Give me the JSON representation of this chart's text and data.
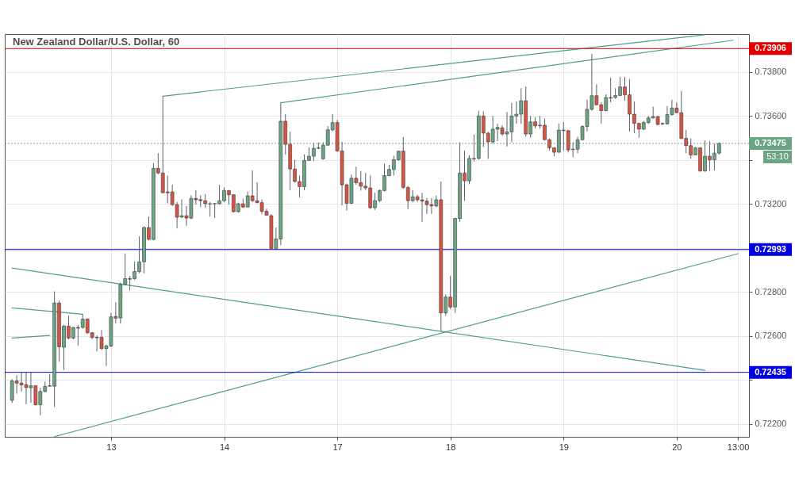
{
  "chart_data": {
    "type": "candlestick",
    "title": "New Zealand Dollar/U.S. Dollar, 60",
    "categories": [
      null,
      null,
      null,
      null,
      null,
      null,
      null,
      null,
      null,
      null,
      null,
      null,
      null,
      null,
      null,
      null,
      null,
      null,
      null,
      null,
      null,
      "13",
      null,
      null,
      null,
      null,
      null,
      null,
      null,
      null,
      null,
      null,
      null,
      null,
      null,
      null,
      null,
      null,
      null,
      null,
      null,
      null,
      null,
      null,
      null,
      "14",
      null,
      null,
      null,
      null,
      null,
      null,
      null,
      null,
      null,
      null,
      null,
      null,
      null,
      null,
      null,
      null,
      null,
      null,
      null,
      null,
      null,
      null,
      null,
      "17",
      null,
      null,
      null,
      null,
      null,
      null,
      null,
      null,
      null,
      null,
      null,
      null,
      null,
      null,
      null,
      null,
      null,
      null,
      null,
      null,
      null,
      null,
      null,
      "18",
      null,
      null,
      null,
      null,
      null,
      null,
      null,
      null,
      null,
      null,
      null,
      null,
      null,
      null,
      null,
      null,
      null,
      null,
      null,
      null,
      null,
      null,
      null,
      "19",
      null,
      null,
      null,
      null,
      null,
      null,
      null,
      null,
      null,
      null,
      null,
      null,
      null,
      null,
      null,
      null,
      null,
      null,
      null,
      null,
      null,
      null,
      null,
      "20",
      null,
      null,
      null,
      null,
      null,
      null,
      null,
      null,
      null,
      null,
      null,
      null,
      "13:00"
    ],
    "ohlc": [
      [
        0.72308,
        0.72404,
        0.72296,
        0.72396
      ],
      [
        0.72396,
        0.72422,
        0.72338,
        0.72386
      ],
      [
        0.72386,
        0.72434,
        0.72348,
        0.72378
      ],
      [
        0.72379,
        0.72434,
        0.7229,
        0.72366
      ],
      [
        0.72365,
        0.72434,
        0.72296,
        0.72374
      ],
      [
        0.72374,
        0.72377,
        0.72284,
        0.72288
      ],
      [
        0.72288,
        0.72365,
        0.7224,
        0.72348
      ],
      [
        0.72348,
        0.72392,
        0.72344,
        0.72371
      ],
      [
        0.72372,
        0.72428,
        0.7237,
        0.72374
      ],
      [
        0.72372,
        0.72803,
        0.72278,
        0.7275
      ],
      [
        0.7275,
        0.72761,
        0.72483,
        0.72551
      ],
      [
        0.72549,
        0.72651,
        0.72446,
        0.72645
      ],
      [
        0.72645,
        0.72693,
        0.72585,
        0.72591
      ],
      [
        0.72591,
        0.72641,
        0.72585,
        0.72639
      ],
      [
        0.72639,
        0.72651,
        0.72557,
        0.72636
      ],
      [
        0.72639,
        0.72699,
        0.72633,
        0.72677
      ],
      [
        0.72677,
        0.72681,
        0.72609,
        0.72615
      ],
      [
        0.72615,
        0.72617,
        0.72585,
        0.72594
      ],
      [
        0.72594,
        0.72603,
        0.72531,
        0.72592
      ],
      [
        0.72594,
        0.72627,
        0.72537,
        0.72543
      ],
      [
        0.72543,
        0.72561,
        0.72464,
        0.72555
      ],
      [
        0.72555,
        0.72705,
        0.72549,
        0.72687
      ],
      [
        0.72689,
        0.72753,
        0.72657,
        0.72681
      ],
      [
        0.72682,
        0.72843,
        0.72657,
        0.72834
      ],
      [
        0.72834,
        0.72975,
        0.72831,
        0.72861
      ],
      [
        0.72861,
        0.72873,
        0.72807,
        0.72858
      ],
      [
        0.72861,
        0.72939,
        0.72855,
        0.72893
      ],
      [
        0.72893,
        0.73053,
        0.72885,
        0.72937
      ],
      [
        0.72937,
        0.73098,
        0.72885,
        0.73093
      ],
      [
        0.73093,
        0.73143,
        0.73035,
        0.73039
      ],
      [
        0.73039,
        0.73386,
        0.73035,
        0.73362
      ],
      [
        0.73362,
        0.73431,
        0.73335,
        0.73341
      ],
      [
        0.73341,
        0.7369,
        0.73249,
        0.73251
      ],
      [
        0.73255,
        0.73329,
        0.73203,
        0.73251
      ],
      [
        0.73255,
        0.73287,
        0.73191,
        0.73197
      ],
      [
        0.73197,
        0.73209,
        0.73089,
        0.7314
      ],
      [
        0.7314,
        0.73221,
        0.73137,
        0.73147
      ],
      [
        0.73147,
        0.73191,
        0.73101,
        0.73136
      ],
      [
        0.73136,
        0.73239,
        0.73131,
        0.73225
      ],
      [
        0.73225,
        0.73263,
        0.73197,
        0.73219
      ],
      [
        0.7322,
        0.73239,
        0.73185,
        0.73215
      ],
      [
        0.73215,
        0.73245,
        0.73182,
        0.73201
      ],
      [
        0.73201,
        0.73209,
        0.73143,
        0.732
      ],
      [
        0.73201,
        0.73203,
        0.73137,
        0.73202
      ],
      [
        0.73201,
        0.73287,
        0.73197,
        0.73215
      ],
      [
        0.73215,
        0.73275,
        0.73209,
        0.73261
      ],
      [
        0.73261,
        0.73263,
        0.73197,
        0.73242
      ],
      [
        0.73242,
        0.73242,
        0.73161,
        0.73165
      ],
      [
        0.73165,
        0.73206,
        0.7316,
        0.73201
      ],
      [
        0.73201,
        0.73225,
        0.73182,
        0.73186
      ],
      [
        0.73186,
        0.73257,
        0.73185,
        0.73237
      ],
      [
        0.73237,
        0.73353,
        0.73209,
        0.73215
      ],
      [
        0.73215,
        0.73299,
        0.73203,
        0.73206
      ],
      [
        0.73206,
        0.73221,
        0.73155,
        0.73167
      ],
      [
        0.73167,
        0.73179,
        0.73147,
        0.73149
      ],
      [
        0.73147,
        0.73155,
        0.72994,
        0.72997
      ],
      [
        0.72997,
        0.73093,
        0.72994,
        0.73041
      ],
      [
        0.73041,
        0.7366,
        0.73013,
        0.73576
      ],
      [
        0.73576,
        0.73609,
        0.73425,
        0.73471
      ],
      [
        0.73471,
        0.73528,
        0.73263,
        0.73359
      ],
      [
        0.73359,
        0.73401,
        0.73297,
        0.73302
      ],
      [
        0.73302,
        0.73329,
        0.7323,
        0.73279
      ],
      [
        0.73279,
        0.73425,
        0.73263,
        0.73398
      ],
      [
        0.73398,
        0.73458,
        0.73395,
        0.73417
      ],
      [
        0.73417,
        0.73477,
        0.73395,
        0.73453
      ],
      [
        0.73453,
        0.7348,
        0.73449,
        0.73455
      ],
      [
        0.73405,
        0.7348,
        0.73401,
        0.73467
      ],
      [
        0.73467,
        0.73554,
        0.73465,
        0.73537
      ],
      [
        0.73537,
        0.73608,
        0.7353,
        0.7357
      ],
      [
        0.7357,
        0.73582,
        0.73437,
        0.73441
      ],
      [
        0.73441,
        0.73482,
        0.73194,
        0.73287
      ],
      [
        0.73287,
        0.73293,
        0.7317,
        0.73203
      ],
      [
        0.73203,
        0.73335,
        0.73201,
        0.73317
      ],
      [
        0.73317,
        0.73369,
        0.73287,
        0.73297
      ],
      [
        0.73297,
        0.7335,
        0.73261,
        0.73281
      ],
      [
        0.73281,
        0.73341,
        0.73263,
        0.73273
      ],
      [
        0.73273,
        0.73329,
        0.73177,
        0.73183
      ],
      [
        0.73183,
        0.73251,
        0.73173,
        0.73215
      ],
      [
        0.73215,
        0.73266,
        0.73209,
        0.73261
      ],
      [
        0.73261,
        0.73383,
        0.73257,
        0.73329
      ],
      [
        0.73329,
        0.73377,
        0.73326,
        0.73357
      ],
      [
        0.73357,
        0.73419,
        0.73329,
        0.73401
      ],
      [
        0.73401,
        0.73443,
        0.73395,
        0.7344
      ],
      [
        0.7344,
        0.73504,
        0.73269,
        0.73275
      ],
      [
        0.73275,
        0.73281,
        0.73177,
        0.73215
      ],
      [
        0.73215,
        0.73263,
        0.73209,
        0.73233
      ],
      [
        0.73233,
        0.73242,
        0.73209,
        0.73219
      ],
      [
        0.73219,
        0.73251,
        0.73119,
        0.73213
      ],
      [
        0.73213,
        0.73227,
        0.73155,
        0.73197
      ],
      [
        0.73197,
        0.73227,
        0.73155,
        0.73191
      ],
      [
        0.73191,
        0.73239,
        0.73185,
        0.73219
      ],
      [
        0.73219,
        0.73302,
        0.72621,
        0.72705
      ],
      [
        0.72705,
        0.72789,
        0.72693,
        0.72777
      ],
      [
        0.72777,
        0.72873,
        0.72723,
        0.72732
      ],
      [
        0.72732,
        0.73137,
        0.72705,
        0.73134
      ],
      [
        0.73134,
        0.7348,
        0.73119,
        0.73341
      ],
      [
        0.73341,
        0.73443,
        0.73215,
        0.73305
      ],
      [
        0.73305,
        0.73422,
        0.7329,
        0.73407
      ],
      [
        0.73407,
        0.73516,
        0.73393,
        0.73405
      ],
      [
        0.73407,
        0.73624,
        0.73401,
        0.736
      ],
      [
        0.736,
        0.73621,
        0.73459,
        0.73522
      ],
      [
        0.73522,
        0.73528,
        0.73405,
        0.73482
      ],
      [
        0.73482,
        0.736,
        0.73474,
        0.7354
      ],
      [
        0.7354,
        0.73564,
        0.73486,
        0.73548
      ],
      [
        0.73546,
        0.73558,
        0.7351,
        0.73518
      ],
      [
        0.73518,
        0.73618,
        0.73461,
        0.73528
      ],
      [
        0.73528,
        0.7366,
        0.7348,
        0.736
      ],
      [
        0.736,
        0.73666,
        0.73564,
        0.73608
      ],
      [
        0.73608,
        0.73726,
        0.73564,
        0.73669
      ],
      [
        0.73669,
        0.73734,
        0.73506,
        0.73518
      ],
      [
        0.73518,
        0.736,
        0.73501,
        0.73573
      ],
      [
        0.73573,
        0.73594,
        0.73543,
        0.73555
      ],
      [
        0.73558,
        0.736,
        0.73542,
        0.73555
      ],
      [
        0.73558,
        0.73588,
        0.73489,
        0.73492
      ],
      [
        0.73492,
        0.73498,
        0.73443,
        0.73455
      ],
      [
        0.73455,
        0.73458,
        0.73417,
        0.73435
      ],
      [
        0.73435,
        0.73566,
        0.73434,
        0.73536
      ],
      [
        0.73536,
        0.73572,
        0.73443,
        0.73533
      ],
      [
        0.73533,
        0.73537,
        0.73434,
        0.73446
      ],
      [
        0.73449,
        0.7348,
        0.73413,
        0.73447
      ],
      [
        0.73449,
        0.73506,
        0.73431,
        0.73492
      ],
      [
        0.73492,
        0.73558,
        0.73489,
        0.73552
      ],
      [
        0.73552,
        0.73674,
        0.7353,
        0.7363
      ],
      [
        0.7363,
        0.73882,
        0.73624,
        0.73692
      ],
      [
        0.73692,
        0.73744,
        0.73648,
        0.73651
      ],
      [
        0.73651,
        0.73662,
        0.73564,
        0.73624
      ],
      [
        0.73624,
        0.73698,
        0.73621,
        0.73684
      ],
      [
        0.73684,
        0.73774,
        0.73662,
        0.73681
      ],
      [
        0.73684,
        0.73726,
        0.73678,
        0.73693
      ],
      [
        0.73693,
        0.73777,
        0.7369,
        0.73732
      ],
      [
        0.73732,
        0.73777,
        0.73669,
        0.73696
      ],
      [
        0.73696,
        0.73768,
        0.7353,
        0.73608
      ],
      [
        0.73608,
        0.73666,
        0.73522,
        0.73566
      ],
      [
        0.73566,
        0.7357,
        0.73501,
        0.7354
      ],
      [
        0.7354,
        0.73578,
        0.73537,
        0.7357
      ],
      [
        0.7357,
        0.736,
        0.73564,
        0.73591
      ],
      [
        0.73591,
        0.73642,
        0.73588,
        0.73597
      ],
      [
        0.73597,
        0.736,
        0.73558,
        0.73561
      ],
      [
        0.73566,
        0.7357,
        0.73558,
        0.73564
      ],
      [
        0.73564,
        0.73645,
        0.73561,
        0.73606
      ],
      [
        0.73606,
        0.73674,
        0.73602,
        0.73636
      ],
      [
        0.73636,
        0.73662,
        0.73612,
        0.73615
      ],
      [
        0.73615,
        0.73714,
        0.73495,
        0.73498
      ],
      [
        0.73498,
        0.73537,
        0.73431,
        0.73465
      ],
      [
        0.73465,
        0.73498,
        0.73405,
        0.73423
      ],
      [
        0.73423,
        0.73458,
        0.73422,
        0.73455
      ],
      [
        0.73455,
        0.73458,
        0.73347,
        0.7335
      ],
      [
        0.7335,
        0.73489,
        0.73347,
        0.73417
      ],
      [
        0.73417,
        0.73486,
        0.7335,
        0.73401
      ],
      [
        0.73401,
        0.73474,
        0.73353,
        0.73431
      ],
      [
        0.73431,
        0.7348,
        0.73425,
        0.73475
      ],
      null,
      null,
      null,
      null
    ],
    "colors": [
      "#6ba583",
      "#d75442",
      "#d75442",
      "#d75442",
      "#6ba583",
      "#d75442",
      "#6ba583",
      "#6ba583",
      "#6ba583",
      "#6ba583",
      "#d75442",
      "#6ba583",
      "#d75442",
      "#6ba583",
      "#d75442",
      "#6ba583",
      "#d75442",
      "#d75442",
      "#d75442",
      "#d75442",
      "#6ba583",
      "#6ba583",
      "#d75442",
      "#6ba583",
      "#6ba583",
      "#d75442",
      "#6ba583",
      "#6ba583",
      "#6ba583",
      "#d75442",
      "#6ba583",
      "#d75442",
      "#d75442",
      "#d75442",
      "#d75442",
      "#d75442",
      "#6ba583",
      "#d75442",
      "#6ba583",
      "#d75442",
      "#d75442",
      "#d75442",
      "#d75442",
      "#6ba583",
      "#6ba583",
      "#6ba583",
      "#d75442",
      "#d75442",
      "#6ba583",
      "#d75442",
      "#6ba583",
      "#d75442",
      "#d75442",
      "#d75442",
      "#d75442",
      "#d75442",
      "#6ba583",
      "#6ba583",
      "#d75442",
      "#d75442",
      "#d75442",
      "#d75442",
      "#6ba583",
      "#6ba583",
      "#6ba583",
      "#6ba583",
      "#6ba583",
      "#6ba583",
      "#6ba583",
      "#d75442",
      "#d75442",
      "#d75442",
      "#6ba583",
      "#d75442",
      "#d75442",
      "#d75442",
      "#d75442",
      "#6ba583",
      "#6ba583",
      "#6ba583",
      "#6ba583",
      "#6ba583",
      "#6ba583",
      "#d75442",
      "#d75442",
      "#6ba583",
      "#d75442",
      "#d75442",
      "#d75442",
      "#d75442",
      "#6ba583",
      "#d75442",
      "#6ba583",
      "#d75442",
      "#6ba583",
      "#6ba583",
      "#d75442",
      "#6ba583",
      "#d75442",
      "#6ba583",
      "#d75442",
      "#d75442",
      "#6ba583",
      "#6ba583",
      "#d75442",
      "#6ba583",
      "#6ba583",
      "#6ba583",
      "#6ba583",
      "#d75442",
      "#6ba583",
      "#d75442",
      "#d75442",
      "#d75442",
      "#d75442",
      "#d75442",
      "#6ba583",
      "#d75442",
      "#d75442",
      "#d75442",
      "#6ba583",
      "#6ba583",
      "#6ba583",
      "#6ba583",
      "#d75442",
      "#d75442",
      "#6ba583",
      "#d75442",
      "#6ba583",
      "#6ba583",
      "#d75442",
      "#d75442",
      "#d75442",
      "#d75442",
      "#6ba583",
      "#6ba583",
      "#6ba583",
      "#d75442",
      "#d75442",
      "#6ba583",
      "#6ba583",
      "#d75442",
      "#d75442",
      "#d75442",
      "#d75442",
      "#6ba583",
      "#d75442",
      "#6ba583",
      "#d75442",
      "#6ba583",
      "#6ba583",
      null,
      null,
      null,
      null
    ],
    "ylim": [
      0.72142,
      0.73972
    ],
    "yticks": [
      {
        "value": 0.722,
        "label": "0.72200"
      },
      {
        "value": 0.724,
        "label": null
      },
      {
        "value": 0.726,
        "label": "0.72600"
      },
      {
        "value": 0.728,
        "label": "0.72800"
      },
      {
        "value": 0.73,
        "label": null
      },
      {
        "value": 0.732,
        "label": "0.73200"
      },
      {
        "value": 0.734,
        "label": null
      },
      {
        "value": 0.736,
        "label": "0.73600"
      },
      {
        "value": 0.738,
        "label": "0.73800"
      }
    ],
    "grid": true,
    "series": [
      {
        "type": "line",
        "color": "#4a9e8c",
        "values": [
          null,
          null,
          null,
          null,
          null,
          null,
          null,
          null,
          null,
          null,
          null,
          null,
          null,
          null,
          null,
          null,
          null,
          null,
          null,
          null,
          null,
          null,
          null,
          null,
          null,
          null,
          null,
          null,
          null,
          null,
          null,
          null,
          0.7369,
          null,
          null,
          null,
          null,
          null,
          null,
          null,
          null,
          null,
          null,
          null,
          null,
          null,
          null,
          null,
          null,
          null,
          null,
          null,
          null,
          null,
          null,
          null,
          null,
          null,
          null,
          null,
          null,
          null,
          null,
          null,
          null,
          null,
          null,
          null,
          null,
          null,
          null,
          null,
          null,
          null,
          null,
          null,
          null,
          null,
          null,
          null,
          null,
          null,
          null,
          null,
          null,
          null,
          null,
          null,
          null,
          null,
          null,
          null,
          null,
          null,
          null,
          null,
          null,
          null,
          null,
          null,
          null,
          null,
          null,
          null,
          null,
          null,
          null,
          null,
          null,
          null,
          null,
          null,
          null,
          null,
          null,
          null,
          null,
          null,
          null,
          null,
          null,
          null,
          null,
          null,
          null,
          null,
          null,
          null,
          null,
          null,
          null,
          null,
          null,
          null,
          null,
          null,
          null,
          null,
          null,
          null,
          null,
          null,
          null,
          null,
          null,
          null,
          null,
          0.73969,
          null,
          null,
          null,
          null,
          null,
          null,
          null
        ]
      },
      {
        "type": "line",
        "color": "#4a9e8c",
        "values": [
          null,
          null,
          null,
          null,
          null,
          null,
          null,
          null,
          null,
          null,
          null,
          null,
          null,
          null,
          null,
          null,
          null,
          null,
          null,
          null,
          null,
          null,
          null,
          null,
          null,
          null,
          null,
          null,
          null,
          null,
          null,
          null,
          null,
          null,
          null,
          null,
          null,
          null,
          null,
          null,
          null,
          null,
          null,
          null,
          null,
          null,
          null,
          null,
          null,
          null,
          null,
          null,
          null,
          null,
          null,
          null,
          null,
          0.7366,
          null,
          null,
          null,
          null,
          null,
          null,
          null,
          null,
          null,
          null,
          null,
          null,
          null,
          null,
          null,
          null,
          null,
          null,
          null,
          null,
          null,
          null,
          null,
          null,
          null,
          null,
          null,
          null,
          null,
          null,
          null,
          null,
          null,
          null,
          null,
          null,
          null,
          null,
          null,
          null,
          null,
          null,
          null,
          null,
          null,
          null,
          null,
          null,
          null,
          null,
          null,
          null,
          null,
          null,
          null,
          null,
          null,
          null,
          null,
          null,
          null,
          null,
          null,
          null,
          null,
          null,
          null,
          null,
          null,
          null,
          null,
          null,
          null,
          null,
          null,
          null,
          null,
          null,
          null,
          null,
          null,
          null,
          null,
          null,
          null,
          null,
          null,
          null,
          null,
          null,
          null,
          null,
          null,
          null,
          null,
          0.73944,
          null
        ]
      },
      {
        "type": "line",
        "color": "#4a9e8c",
        "values": [
          0.72909,
          null,
          null,
          null,
          null,
          null,
          null,
          null,
          null,
          null,
          null,
          null,
          null,
          null,
          null,
          null,
          null,
          null,
          null,
          null,
          null,
          null,
          null,
          null,
          null,
          null,
          null,
          null,
          null,
          null,
          null,
          null,
          null,
          null,
          null,
          null,
          null,
          null,
          null,
          null,
          null,
          null,
          null,
          null,
          null,
          null,
          null,
          null,
          null,
          null,
          null,
          null,
          null,
          null,
          null,
          null,
          null,
          null,
          null,
          null,
          null,
          null,
          null,
          null,
          null,
          null,
          null,
          null,
          null,
          null,
          null,
          null,
          null,
          null,
          null,
          null,
          null,
          null,
          null,
          null,
          null,
          null,
          null,
          null,
          null,
          null,
          null,
          null,
          null,
          null,
          null,
          null,
          null,
          null,
          null,
          null,
          null,
          null,
          null,
          null,
          null,
          null,
          null,
          null,
          null,
          null,
          null,
          null,
          null,
          null,
          null,
          null,
          null,
          null,
          null,
          null,
          null,
          null,
          null,
          null,
          null,
          null,
          null,
          null,
          null,
          null,
          null,
          null,
          null,
          null,
          null,
          null,
          null,
          null,
          null,
          null,
          null,
          null,
          null,
          null,
          null,
          null,
          null,
          null,
          null,
          null,
          null,
          0.72444,
          null,
          null,
          null,
          null,
          null,
          null,
          null
        ]
      },
      {
        "type": "line",
        "color": "#4a9e8c",
        "values": [
          null,
          null,
          null,
          null,
          null,
          null,
          null,
          null,
          null,
          0.72143,
          null,
          null,
          null,
          null,
          null,
          null,
          null,
          null,
          null,
          null,
          null,
          null,
          null,
          null,
          null,
          null,
          null,
          null,
          null,
          null,
          null,
          null,
          null,
          null,
          null,
          null,
          null,
          null,
          null,
          null,
          null,
          null,
          null,
          null,
          null,
          null,
          null,
          null,
          null,
          null,
          null,
          null,
          null,
          null,
          null,
          null,
          null,
          null,
          null,
          null,
          null,
          null,
          null,
          null,
          null,
          null,
          null,
          null,
          null,
          null,
          null,
          null,
          null,
          null,
          null,
          null,
          null,
          null,
          null,
          null,
          null,
          null,
          null,
          null,
          null,
          null,
          null,
          null,
          null,
          null,
          null,
          null,
          null,
          null,
          null,
          null,
          null,
          null,
          null,
          null,
          null,
          null,
          null,
          null,
          null,
          null,
          null,
          null,
          null,
          null,
          null,
          null,
          null,
          null,
          null,
          null,
          null,
          null,
          null,
          null,
          null,
          null,
          null,
          null,
          null,
          null,
          null,
          null,
          null,
          null,
          null,
          null,
          null,
          null,
          null,
          null,
          null,
          null,
          null,
          null,
          null,
          null,
          null,
          null,
          null,
          null,
          null,
          null,
          null,
          null,
          null,
          null,
          null,
          null,
          0.72974
        ]
      },
      {
        "type": "line",
        "color": "#4a9e8c",
        "values": [
          0.72728,
          null,
          null,
          null,
          null,
          null,
          null,
          null,
          null,
          null,
          null,
          null,
          null,
          null,
          null,
          0.72699,
          null,
          null,
          null,
          null,
          null,
          null,
          null,
          null,
          null,
          null,
          null,
          null,
          null,
          null,
          null,
          null,
          null,
          null,
          null,
          null,
          null,
          null,
          null,
          null,
          null,
          null,
          null,
          null,
          null,
          null,
          null,
          null,
          null,
          null,
          null,
          null,
          null,
          null,
          null,
          null,
          null,
          null,
          null,
          null,
          null,
          null,
          null,
          null,
          null,
          null,
          null,
          null,
          null,
          null,
          null,
          null,
          null,
          null,
          null,
          null,
          null,
          null,
          null,
          null,
          null,
          null,
          null,
          null,
          null,
          null,
          null,
          null,
          null,
          null,
          null,
          null,
          null,
          null,
          null,
          null,
          null,
          null,
          null,
          null,
          null,
          null,
          null,
          null,
          null,
          null,
          null,
          null,
          null,
          null,
          null,
          null,
          null,
          null,
          null,
          null,
          null,
          null,
          null,
          null,
          null,
          null,
          null,
          null,
          null,
          null,
          null,
          null,
          null,
          null,
          null,
          null,
          null,
          null,
          null,
          null,
          null,
          null,
          null,
          null,
          null,
          null,
          null,
          null,
          null,
          null,
          null,
          null,
          null,
          null,
          null,
          null,
          null,
          null,
          null
        ]
      },
      {
        "type": "line",
        "color": "#4a9e8c",
        "values": [
          0.72591,
          null,
          null,
          null,
          null,
          null,
          null,
          null,
          0.72603,
          null,
          null,
          null,
          null,
          null,
          null,
          null,
          null,
          null,
          null,
          null,
          null,
          null,
          null,
          null,
          null,
          null,
          null,
          null,
          null,
          null,
          null,
          null,
          null,
          null,
          null,
          null,
          null,
          null,
          null,
          null,
          null,
          null,
          null,
          null,
          null,
          null,
          null,
          null,
          null,
          null,
          null,
          null,
          null,
          null,
          null,
          null,
          null,
          null,
          null,
          null,
          null,
          null,
          null,
          null,
          null,
          null,
          null,
          null,
          null,
          null,
          null,
          null,
          null,
          null,
          null,
          null,
          null,
          null,
          null,
          null,
          null,
          null,
          null,
          null,
          null,
          null,
          null,
          null,
          null,
          null,
          null,
          null,
          null,
          null,
          null,
          null,
          null,
          null,
          null,
          null,
          null,
          null,
          null,
          null,
          null,
          null,
          null,
          null,
          null,
          null,
          null,
          null,
          null,
          null,
          null,
          null,
          null,
          null,
          null,
          null,
          null,
          null,
          null,
          null,
          null,
          null,
          null,
          null,
          null,
          null,
          null,
          null,
          null,
          null,
          null,
          null,
          null,
          null,
          null,
          null,
          null,
          null,
          null,
          null,
          null,
          null,
          null,
          null,
          null,
          null,
          null,
          null,
          null,
          null,
          null
        ]
      }
    ],
    "ref_lines": [
      {
        "axis": "y",
        "value": 0.73906,
        "label": "0.73906",
        "color": "#e00000"
      },
      {
        "axis": "y",
        "value": 0.72993,
        "label": "0.72993",
        "color": "#0000e0"
      },
      {
        "axis": "y",
        "value": 0.72435,
        "label": "0.72435",
        "color": "#0000e0"
      },
      {
        "axis": "y",
        "value": 0.73475,
        "label": "0.73475",
        "color": "#6ba583",
        "line_style": "dotted"
      }
    ],
    "annotations": [
      "53:10"
    ]
  }
}
